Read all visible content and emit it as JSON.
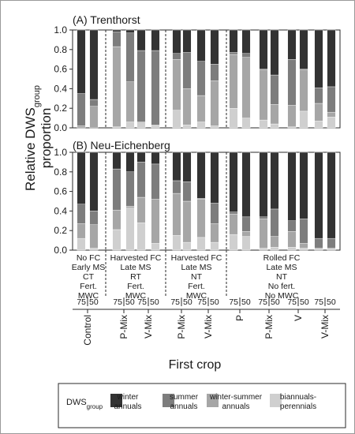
{
  "chart_data": {
    "type": "bar",
    "stacked": true,
    "title": "",
    "ylabel": "Relative DWS",
    "ylabel_subscript": "group",
    "ylabel_line2": "proportion",
    "xlabel": "First crop",
    "ylim": [
      0,
      1
    ],
    "yticks": [
      "0.0",
      "0.2",
      "0.4",
      "0.6",
      "0.8",
      "1.0"
    ],
    "panels": [
      "(A) Trenthorst",
      "(B) Neu-Eichenberg"
    ],
    "series_order": [
      "biannuals-perennials",
      "winter-summer annuals",
      "summer annuals",
      "winter annuals"
    ],
    "colors": {
      "winter annuals": "#333333",
      "summer annuals": "#7d7d7d",
      "winter-summer annuals": "#a6a6a6",
      "biannuals-perennials": "#cfcfcf"
    },
    "treatment_groups": [
      {
        "lines": [
          "No FC",
          "Early MS",
          "CT",
          "Fert.",
          "MWC"
        ]
      },
      {
        "lines": [
          "Harvested FC",
          "Late MS",
          "RT",
          "Fert.",
          "MWC"
        ]
      },
      {
        "lines": [
          "Harvested FC",
          "Late MS",
          "NT",
          "Fert.",
          "MWC"
        ]
      },
      {
        "lines": [
          "Rolled FC",
          "Late MS",
          "NT",
          "No fert.",
          "No MWC"
        ]
      }
    ],
    "sowing_density_labels": [
      "75",
      "50"
    ],
    "first_crops": [
      "Control",
      "P-Mix",
      "V-Mix",
      "P-Mix",
      "V-Mix",
      "P",
      "P-Mix",
      "V",
      "V-Mix"
    ],
    "panel_data": [
      {
        "name": "(A) Trenthorst",
        "bars": [
          {
            "winter_summer": 0.02,
            "summer": 0.33,
            "winter": 0.65
          },
          {
            "winter_summer": 0.22,
            "summer": 0.07,
            "winter": 0.71
          },
          {
            "biannual": 0.01,
            "winter_summer": 0.82,
            "summer": 0.15,
            "winter": 0.02
          },
          {
            "biannual": 0.06,
            "winter_summer": 0.41,
            "summer": 0.5,
            "winter": 0.03
          },
          {
            "biannual": 0.05,
            "winter_summer": 0.01,
            "summer": 0.73,
            "winter": 0.21
          },
          {
            "biannual": 0.02,
            "winter_summer": 0.01,
            "summer": 0.76,
            "winter": 0.21
          },
          {
            "biannual": 0.18,
            "winter_summer": 0.52,
            "summer": 0.06,
            "winter": 0.24
          },
          {
            "biannual": 0.03,
            "winter_summer": 0.37,
            "summer": 0.37,
            "winter": 0.23
          },
          {
            "biannual": 0.06,
            "winter_summer": 0.27,
            "summer": 0.35,
            "winter": 0.32
          },
          {
            "biannual": 0.02,
            "winter_summer": 0.46,
            "summer": 0.17,
            "winter": 0.35
          },
          {
            "biannual": 0.2,
            "winter_summer": 0.55,
            "summer": 0.02,
            "winter": 0.23
          },
          {
            "biannual": 0.1,
            "winter_summer": 0.62,
            "summer": 0.04,
            "winter": 0.24
          },
          {
            "biannual": 0.08,
            "winter_summer": 0.51,
            "summer": 0.01,
            "winter": 0.4
          },
          {
            "biannual": 0.04,
            "winter_summer": 0.2,
            "summer": 0.3,
            "winter": 0.46
          },
          {
            "biannual": 0.01,
            "winter_summer": 0.22,
            "summer": 0.47,
            "winter": 0.3
          },
          {
            "biannual": 0.17,
            "winter_summer": 0.42,
            "summer": 0.01,
            "winter": 0.4
          },
          {
            "biannual": 0.07,
            "winter_summer": 0.18,
            "summer": 0.16,
            "winter": 0.59
          },
          {
            "biannual": 0.11,
            "winter_summer": 0.05,
            "summer": 0.26,
            "winter": 0.58
          }
        ]
      },
      {
        "name": "(B) Neu-Eichenberg",
        "bars": [
          {
            "biannual": 0.12,
            "winter_summer": 0.15,
            "summer": 0.2,
            "winter": 0.53
          },
          {
            "biannual": 0.02,
            "winter_summer": 0.24,
            "summer": 0.14,
            "winter": 0.6
          },
          {
            "biannual": 0.21,
            "winter_summer": 0.2,
            "summer": 0.42,
            "winter": 0.17
          },
          {
            "biannual": 0.43,
            "winter_summer": 0.02,
            "summer": 0.35,
            "winter": 0.2
          },
          {
            "biannual": 0.28,
            "winter_summer": 0.26,
            "summer": 0.36,
            "winter": 0.1
          },
          {
            "biannual": 0.07,
            "winter_summer": 0.45,
            "summer": 0.36,
            "winter": 0.12
          },
          {
            "biannual": 0.15,
            "winter_summer": 0.43,
            "summer": 0.13,
            "winter": 0.29
          },
          {
            "biannual": 0.08,
            "winter_summer": 0.42,
            "summer": 0.2,
            "winter": 0.3
          },
          {
            "biannual": 0.13,
            "winter_summer": 0.39,
            "summer": 0.01,
            "winter": 0.47
          },
          {
            "biannual": 0.08,
            "winter_summer": 0.19,
            "summer": 0.21,
            "winter": 0.52
          },
          {
            "biannual": 0.16,
            "winter_summer": 0.21,
            "summer": 0.02,
            "winter": 0.61
          },
          {
            "biannual": 0.14,
            "winter_summer": 0.05,
            "summer": 0.15,
            "winter": 0.66
          },
          {
            "biannual": 0.02,
            "winter_summer": 0.3,
            "summer": 0.02,
            "winter": 0.66
          },
          {
            "biannual": 0.03,
            "winter_summer": 0.11,
            "summer": 0.28,
            "winter": 0.58
          },
          {
            "biannual": 0.03,
            "winter_summer": 0.16,
            "summer": 0.11,
            "winter": 0.7
          },
          {
            "biannual": 0.02,
            "winter_summer": 0.05,
            "summer": 0.25,
            "winter": 0.68
          },
          {
            "biannual": 0.01,
            "winter_summer": 0.01,
            "summer": 0.1,
            "winter": 0.88
          },
          {
            "biannual": 0.01,
            "winter_summer": 0.01,
            "summer": 0.1,
            "winter": 0.88
          }
        ]
      }
    ],
    "legend": {
      "title": "DWS",
      "title_subscript": "group",
      "position": "bottom",
      "items": [
        {
          "label_lines": [
            "winter",
            "annuals"
          ]
        },
        {
          "label_lines": [
            "summer",
            "annuals"
          ]
        },
        {
          "label_lines": [
            "winter-summer",
            "annuals"
          ]
        },
        {
          "label_lines": [
            "biannuals-",
            "perennials"
          ]
        }
      ]
    }
  }
}
